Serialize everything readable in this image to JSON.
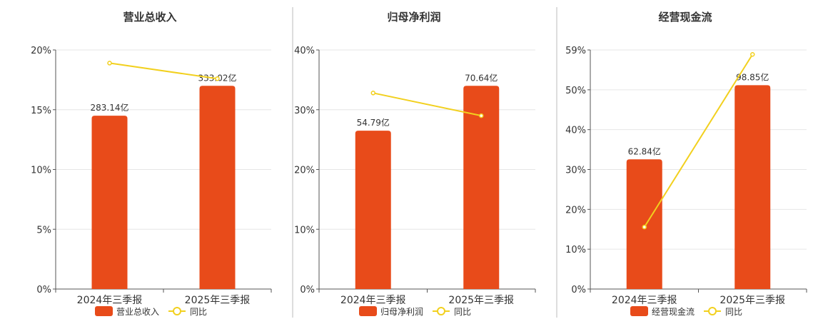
{
  "colors": {
    "bar": "#E84B1A",
    "line": "#F2D01E",
    "axis": "#555555",
    "grid": "#E6E6E6",
    "divider": "#BBBBBB",
    "text": "#333333"
  },
  "chart_data": [
    {
      "type": "bar",
      "title": "营业总收入",
      "categories": [
        "2024年三季报",
        "2025年三季报"
      ],
      "bar_series": {
        "name": "营业总收入",
        "labels": [
          "283.14亿",
          "333.02亿"
        ]
      },
      "line_series": {
        "name": "同比",
        "values": [
          18.9,
          17.6
        ]
      },
      "y_ticks": [
        "20%",
        "15%",
        "10%",
        "5%",
        "0%"
      ],
      "ylim": [
        0,
        20
      ],
      "bar_heights": [
        14.5,
        17.0
      ],
      "legend": "bottom",
      "grid": true
    },
    {
      "type": "bar",
      "title": "归母净利润",
      "categories": [
        "2024年三季报",
        "2025年三季报"
      ],
      "bar_series": {
        "name": "归母净利润",
        "labels": [
          "54.79亿",
          "70.64亿"
        ]
      },
      "line_series": {
        "name": "同比",
        "values": [
          32.8,
          29.0
        ]
      },
      "y_ticks": [
        "40%",
        "30%",
        "20%",
        "10%",
        "0%"
      ],
      "ylim": [
        0,
        40
      ],
      "bar_heights": [
        26.5,
        34.0
      ],
      "legend": "bottom",
      "grid": true
    },
    {
      "type": "bar",
      "title": "经营现金流",
      "categories": [
        "2024年三季报",
        "2025年三季报"
      ],
      "bar_series": {
        "name": "经营现金流",
        "labels": [
          "62.84亿",
          "98.85亿"
        ]
      },
      "line_series": {
        "name": "同比",
        "values": [
          15.3,
          57.9
        ]
      },
      "y_ticks": [
        "59%",
        "50%",
        "40%",
        "30%",
        "20%",
        "10%",
        "0%"
      ],
      "ylim": [
        0,
        59
      ],
      "bar_heights": [
        32.0,
        50.3
      ],
      "legend": "bottom",
      "grid": true
    }
  ]
}
